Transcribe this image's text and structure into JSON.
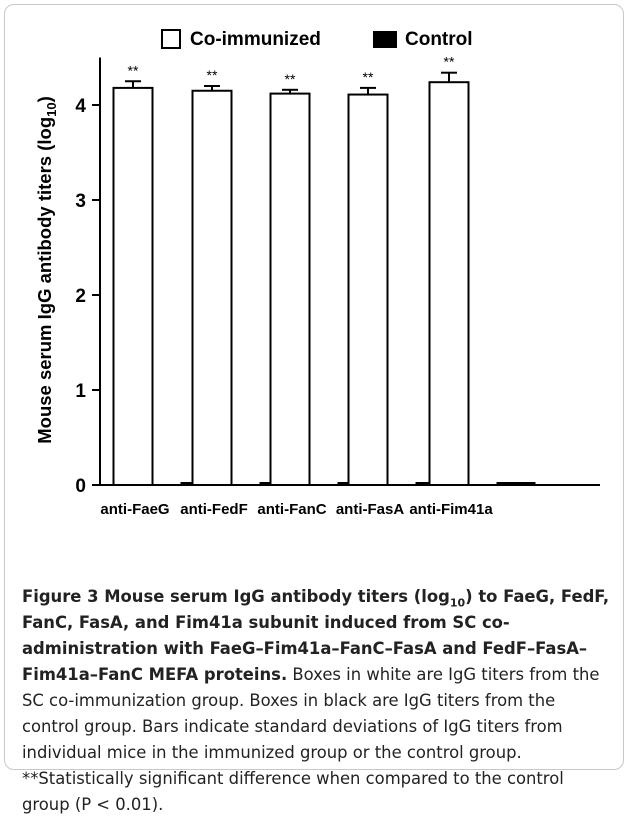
{
  "chart_data": {
    "type": "bar",
    "ylabel_main": "Mouse serum IgG antibody titers (log",
    "ylabel_sub": "10",
    "ylabel_close": ")",
    "ylim": [
      0,
      4.5
    ],
    "yticks": [
      0,
      1,
      2,
      3,
      4
    ],
    "categories": [
      "anti-FaeG",
      "anti-FedF",
      "anti-FanC",
      "anti-FasA",
      "anti-Fim41a"
    ],
    "series": [
      {
        "name": "Co-immunized",
        "values": [
          4.18,
          4.15,
          4.12,
          4.11,
          4.24
        ],
        "errors": [
          0.07,
          0.05,
          0.04,
          0.07,
          0.1
        ],
        "color": "#ffffff"
      },
      {
        "name": "Control",
        "values": [
          0.03,
          0.03,
          0.03,
          0.02,
          0.02
        ],
        "color": "#000000"
      }
    ],
    "annotations": [
      "**",
      "**",
      "**",
      "**",
      "**"
    ],
    "legend_position": "top",
    "grid": false
  },
  "caption": {
    "figure_label": "Figure 3",
    "bold_part1": " Mouse serum IgG antibody titers (log",
    "bold_sub": "10",
    "bold_part2": ") to FaeG, FedF, FanC, FasA, and Fim41a subunit induced from SC co-administration with FaeG–Fim41a–FanC–FasA and FedF–FasA–Fim41a–FanC MEFA proteins.",
    "body": " Boxes in white are IgG titers from the SC co-immunization group. Boxes in black are IgG titers from the control group. Bars indicate standard deviations of IgG titers from individual mice in the immunized group or the control group. **Statistically significant difference when compared to the control group (P < 0.01)."
  }
}
